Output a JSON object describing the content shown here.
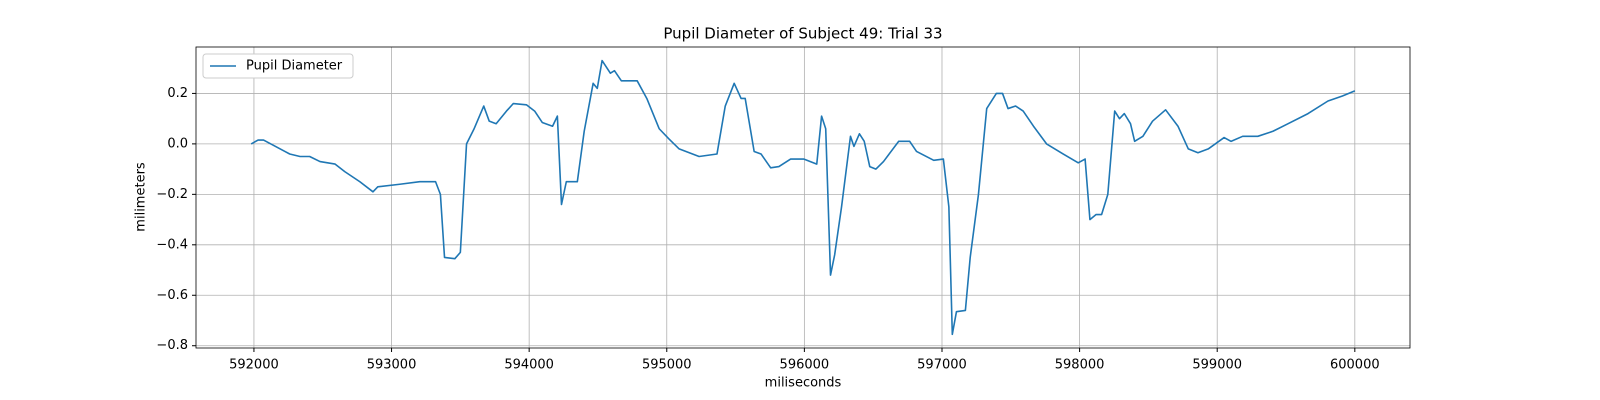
{
  "chart_data": {
    "type": "line",
    "title": "Pupil Diameter of Subject 49: Trial 33",
    "x_label": "miliseconds",
    "y_label": "milimeters",
    "x": [
      591980,
      592030,
      592070,
      592225,
      592260,
      592335,
      592405,
      592480,
      592590,
      592660,
      592770,
      592865,
      592900,
      593060,
      593205,
      593320,
      593355,
      593385,
      593460,
      593500,
      593545,
      593600,
      593670,
      593710,
      593760,
      593835,
      593885,
      593980,
      594040,
      594095,
      594170,
      594205,
      594235,
      594270,
      594350,
      594400,
      594465,
      594495,
      594530,
      594590,
      594620,
      594670,
      594785,
      594855,
      594945,
      595015,
      595090,
      595235,
      595365,
      595425,
      595490,
      595540,
      595570,
      595635,
      595685,
      595755,
      595815,
      595900,
      595995,
      596090,
      596125,
      596155,
      596190,
      596220,
      596270,
      596335,
      596360,
      596400,
      596435,
      596475,
      596520,
      596575,
      596685,
      596765,
      596815,
      596940,
      597010,
      597050,
      597075,
      597105,
      597170,
      597205,
      597265,
      597325,
      597395,
      597440,
      597480,
      597535,
      597590,
      597665,
      597760,
      597880,
      597990,
      598040,
      598075,
      598120,
      598160,
      598205,
      598255,
      598290,
      598325,
      598370,
      598400,
      598460,
      598530,
      598625,
      598715,
      598790,
      598860,
      598935,
      599050,
      599100,
      599185,
      599295,
      599405,
      599515,
      599660,
      599805,
      599910,
      600000
    ],
    "series": [
      {
        "name": "Pupil Diameter",
        "color": "#1f77b4",
        "values": [
          0.0,
          0.015,
          0.015,
          -0.03,
          -0.04,
          -0.05,
          -0.05,
          -0.07,
          -0.08,
          -0.11,
          -0.15,
          -0.19,
          -0.17,
          -0.16,
          -0.15,
          -0.15,
          -0.2,
          -0.45,
          -0.455,
          -0.43,
          0.0,
          0.06,
          0.15,
          0.09,
          0.08,
          0.13,
          0.16,
          0.155,
          0.13,
          0.085,
          0.07,
          0.11,
          -0.24,
          -0.15,
          -0.15,
          0.05,
          0.24,
          0.22,
          0.33,
          0.28,
          0.29,
          0.25,
          0.25,
          0.18,
          0.06,
          0.02,
          -0.02,
          -0.05,
          -0.04,
          0.15,
          0.24,
          0.18,
          0.18,
          -0.03,
          -0.04,
          -0.095,
          -0.09,
          -0.06,
          -0.06,
          -0.08,
          0.11,
          0.06,
          -0.52,
          -0.44,
          -0.25,
          0.03,
          -0.01,
          0.04,
          0.01,
          -0.09,
          -0.1,
          -0.07,
          0.01,
          0.01,
          -0.03,
          -0.065,
          -0.06,
          -0.25,
          -0.755,
          -0.665,
          -0.66,
          -0.45,
          -0.2,
          0.14,
          0.2,
          0.2,
          0.14,
          0.15,
          0.13,
          0.07,
          0.0,
          -0.04,
          -0.075,
          -0.06,
          -0.3,
          -0.28,
          -0.28,
          -0.2,
          0.13,
          0.1,
          0.12,
          0.08,
          0.01,
          0.03,
          0.09,
          0.135,
          0.07,
          -0.02,
          -0.035,
          -0.02,
          0.025,
          0.01,
          0.03,
          0.03,
          0.05,
          0.08,
          0.12,
          0.17,
          0.19,
          0.21
        ]
      }
    ],
    "xlim": [
      591579,
      600401
    ],
    "ylim": [
      -0.809,
      0.384
    ],
    "xticks": [
      592000,
      593000,
      594000,
      595000,
      596000,
      597000,
      598000,
      599000,
      600000
    ],
    "yticks": [
      {
        "value": -0.8,
        "label": "−0.8"
      },
      {
        "value": -0.6,
        "label": "−0.6"
      },
      {
        "value": -0.4,
        "label": "−0.4"
      },
      {
        "value": -0.2,
        "label": "−0.2"
      },
      {
        "value": 0,
        "label": "0.0"
      },
      0.2
    ],
    "grid": true,
    "legend": "upper left"
  }
}
